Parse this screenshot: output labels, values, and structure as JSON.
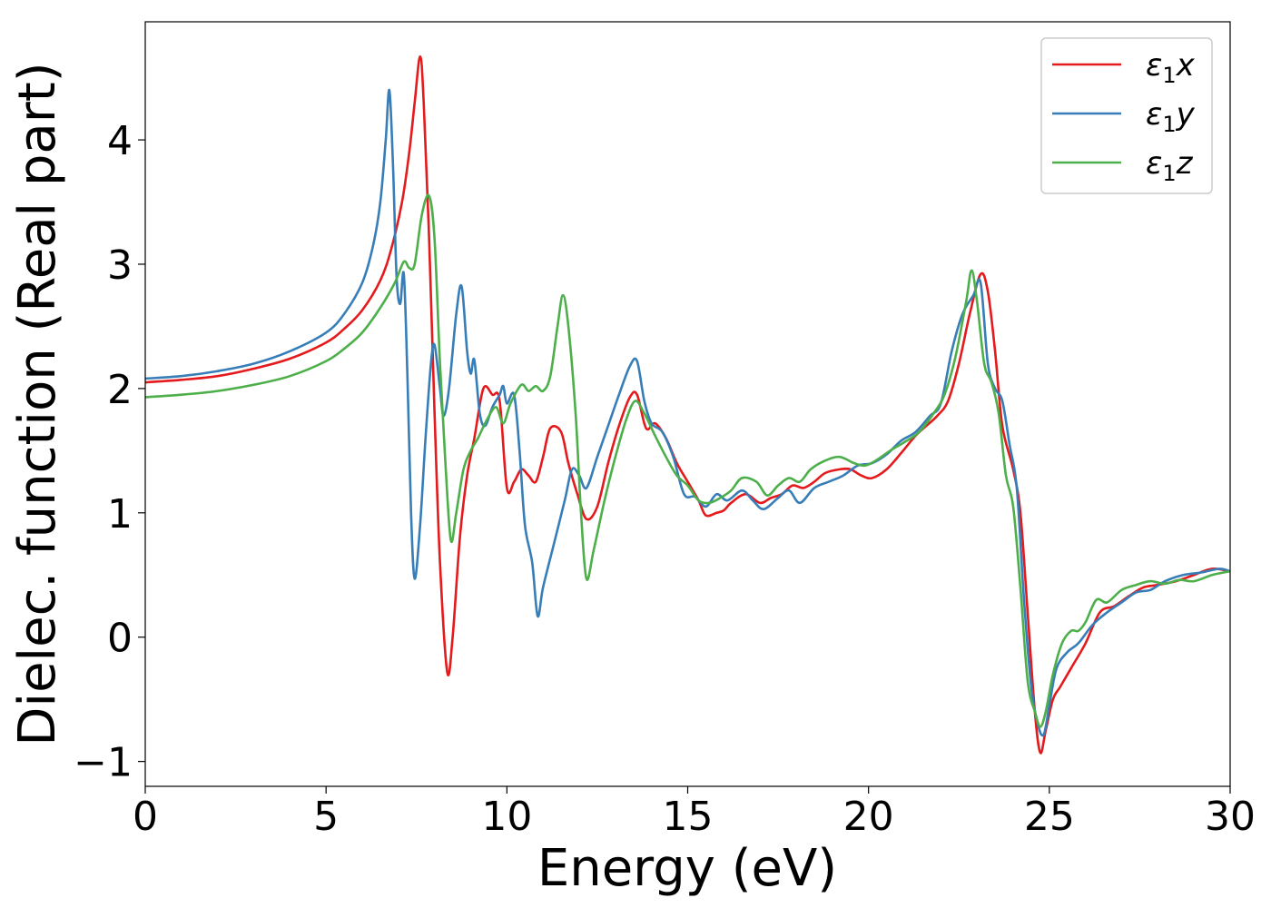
{
  "chart_data": {
    "type": "line",
    "xlabel": "Energy (eV)",
    "ylabel": "Dielec. function (Real part)",
    "xlim": [
      0,
      30
    ],
    "ylim": [
      -1.2,
      4.95
    ],
    "xticks": [
      "0",
      "5",
      "10",
      "15",
      "20",
      "25",
      "30"
    ],
    "yticks": [
      "−1",
      "0",
      "1",
      "2",
      "3",
      "4"
    ],
    "grid": false,
    "legend_position": "top-right",
    "series": [
      {
        "name": "ε1x",
        "legend": {
          "base": "ε",
          "sub": "1",
          "var": "x"
        },
        "color": "#e41a1c",
        "points": [
          [
            0,
            2.05
          ],
          [
            1,
            2.07
          ],
          [
            2,
            2.1
          ],
          [
            3,
            2.16
          ],
          [
            4,
            2.24
          ],
          [
            5,
            2.37
          ],
          [
            5.5,
            2.48
          ],
          [
            6,
            2.63
          ],
          [
            6.5,
            2.87
          ],
          [
            6.8,
            3.12
          ],
          [
            7.1,
            3.5
          ],
          [
            7.3,
            3.9
          ],
          [
            7.45,
            4.3
          ],
          [
            7.6,
            4.67
          ],
          [
            7.7,
            4.3
          ],
          [
            7.85,
            3.2
          ],
          [
            8.0,
            1.8
          ],
          [
            8.15,
            0.6
          ],
          [
            8.35,
            -0.28
          ],
          [
            8.5,
            0.0
          ],
          [
            8.7,
            0.8
          ],
          [
            8.9,
            1.3
          ],
          [
            9.1,
            1.6
          ],
          [
            9.35,
            2.0
          ],
          [
            9.6,
            1.95
          ],
          [
            9.8,
            1.9
          ],
          [
            10.0,
            1.2
          ],
          [
            10.2,
            1.25
          ],
          [
            10.4,
            1.35
          ],
          [
            10.6,
            1.3
          ],
          [
            10.8,
            1.25
          ],
          [
            11.0,
            1.45
          ],
          [
            11.2,
            1.68
          ],
          [
            11.5,
            1.65
          ],
          [
            11.7,
            1.4
          ],
          [
            11.95,
            1.15
          ],
          [
            12.2,
            0.95
          ],
          [
            12.5,
            1.05
          ],
          [
            12.8,
            1.4
          ],
          [
            13.1,
            1.7
          ],
          [
            13.4,
            1.93
          ],
          [
            13.6,
            1.95
          ],
          [
            13.85,
            1.68
          ],
          [
            14.1,
            1.72
          ],
          [
            14.4,
            1.6
          ],
          [
            14.7,
            1.4
          ],
          [
            15.0,
            1.25
          ],
          [
            15.3,
            1.1
          ],
          [
            15.5,
            0.98
          ],
          [
            15.8,
            1.0
          ],
          [
            16.0,
            1.02
          ],
          [
            16.2,
            1.08
          ],
          [
            16.6,
            1.15
          ],
          [
            17.0,
            1.08
          ],
          [
            17.3,
            1.12
          ],
          [
            17.6,
            1.15
          ],
          [
            17.9,
            1.22
          ],
          [
            18.2,
            1.2
          ],
          [
            18.5,
            1.25
          ],
          [
            18.8,
            1.32
          ],
          [
            19.2,
            1.35
          ],
          [
            19.5,
            1.35
          ],
          [
            19.8,
            1.3
          ],
          [
            20.1,
            1.28
          ],
          [
            20.5,
            1.35
          ],
          [
            20.9,
            1.48
          ],
          [
            21.3,
            1.62
          ],
          [
            21.6,
            1.7
          ],
          [
            21.9,
            1.78
          ],
          [
            22.2,
            1.9
          ],
          [
            22.5,
            2.2
          ],
          [
            22.8,
            2.6
          ],
          [
            23.1,
            2.92
          ],
          [
            23.3,
            2.78
          ],
          [
            23.5,
            2.3
          ],
          [
            23.7,
            1.7
          ],
          [
            24.0,
            1.35
          ],
          [
            24.2,
            1.0
          ],
          [
            24.4,
            0.2
          ],
          [
            24.6,
            -0.6
          ],
          [
            24.75,
            -0.93
          ],
          [
            24.9,
            -0.75
          ],
          [
            25.1,
            -0.5
          ],
          [
            25.3,
            -0.4
          ],
          [
            25.6,
            -0.25
          ],
          [
            26.0,
            -0.05
          ],
          [
            26.4,
            0.2
          ],
          [
            26.8,
            0.25
          ],
          [
            27.2,
            0.33
          ],
          [
            27.6,
            0.4
          ],
          [
            28.0,
            0.42
          ],
          [
            28.5,
            0.45
          ],
          [
            29.0,
            0.5
          ],
          [
            29.5,
            0.55
          ],
          [
            30.0,
            0.53
          ]
        ]
      },
      {
        "name": "ε1y",
        "legend": {
          "base": "ε",
          "sub": "1",
          "var": "y"
        },
        "color": "#377eb8",
        "points": [
          [
            0,
            2.08
          ],
          [
            1,
            2.1
          ],
          [
            2,
            2.14
          ],
          [
            3,
            2.2
          ],
          [
            4,
            2.3
          ],
          [
            5,
            2.45
          ],
          [
            5.5,
            2.6
          ],
          [
            6,
            2.85
          ],
          [
            6.3,
            3.15
          ],
          [
            6.5,
            3.5
          ],
          [
            6.65,
            4.0
          ],
          [
            6.75,
            4.4
          ],
          [
            6.85,
            3.8
          ],
          [
            6.95,
            2.9
          ],
          [
            7.05,
            2.68
          ],
          [
            7.15,
            2.92
          ],
          [
            7.25,
            2.1
          ],
          [
            7.35,
            1.0
          ],
          [
            7.45,
            0.47
          ],
          [
            7.6,
            0.9
          ],
          [
            7.75,
            1.6
          ],
          [
            7.9,
            2.2
          ],
          [
            8.0,
            2.35
          ],
          [
            8.15,
            2.0
          ],
          [
            8.25,
            1.78
          ],
          [
            8.4,
            2.0
          ],
          [
            8.6,
            2.6
          ],
          [
            8.75,
            2.82
          ],
          [
            8.9,
            2.3
          ],
          [
            9.0,
            2.12
          ],
          [
            9.1,
            2.23
          ],
          [
            9.25,
            1.8
          ],
          [
            9.4,
            1.7
          ],
          [
            9.6,
            1.85
          ],
          [
            9.8,
            1.95
          ],
          [
            9.9,
            2.02
          ],
          [
            10.0,
            1.88
          ],
          [
            10.2,
            1.95
          ],
          [
            10.35,
            1.5
          ],
          [
            10.5,
            0.9
          ],
          [
            10.7,
            0.6
          ],
          [
            10.85,
            0.17
          ],
          [
            11.0,
            0.4
          ],
          [
            11.3,
            0.75
          ],
          [
            11.6,
            1.1
          ],
          [
            11.8,
            1.35
          ],
          [
            12.0,
            1.3
          ],
          [
            12.2,
            1.2
          ],
          [
            12.5,
            1.45
          ],
          [
            12.8,
            1.7
          ],
          [
            13.1,
            1.95
          ],
          [
            13.4,
            2.18
          ],
          [
            13.6,
            2.22
          ],
          [
            13.8,
            1.9
          ],
          [
            14.0,
            1.72
          ],
          [
            14.3,
            1.65
          ],
          [
            14.6,
            1.45
          ],
          [
            14.9,
            1.15
          ],
          [
            15.2,
            1.13
          ],
          [
            15.5,
            1.05
          ],
          [
            15.8,
            1.15
          ],
          [
            16.1,
            1.1
          ],
          [
            16.5,
            1.18
          ],
          [
            16.8,
            1.1
          ],
          [
            17.1,
            1.03
          ],
          [
            17.5,
            1.12
          ],
          [
            17.8,
            1.18
          ],
          [
            18.1,
            1.08
          ],
          [
            18.5,
            1.2
          ],
          [
            18.9,
            1.25
          ],
          [
            19.3,
            1.3
          ],
          [
            19.7,
            1.38
          ],
          [
            20.1,
            1.4
          ],
          [
            20.5,
            1.47
          ],
          [
            20.9,
            1.58
          ],
          [
            21.3,
            1.65
          ],
          [
            21.7,
            1.78
          ],
          [
            22.0,
            1.88
          ],
          [
            22.3,
            2.3
          ],
          [
            22.6,
            2.6
          ],
          [
            22.9,
            2.75
          ],
          [
            23.1,
            2.85
          ],
          [
            23.3,
            2.2
          ],
          [
            23.5,
            2.0
          ],
          [
            23.7,
            1.9
          ],
          [
            23.9,
            1.55
          ],
          [
            24.1,
            1.2
          ],
          [
            24.3,
            0.3
          ],
          [
            24.5,
            -0.4
          ],
          [
            24.7,
            -0.72
          ],
          [
            24.85,
            -0.78
          ],
          [
            25.0,
            -0.55
          ],
          [
            25.2,
            -0.25
          ],
          [
            25.5,
            -0.12
          ],
          [
            25.8,
            -0.05
          ],
          [
            26.2,
            0.1
          ],
          [
            26.6,
            0.2
          ],
          [
            27.0,
            0.28
          ],
          [
            27.4,
            0.36
          ],
          [
            27.8,
            0.38
          ],
          [
            28.2,
            0.45
          ],
          [
            28.7,
            0.5
          ],
          [
            29.2,
            0.52
          ],
          [
            29.7,
            0.55
          ],
          [
            30.0,
            0.53
          ]
        ]
      },
      {
        "name": "ε1z",
        "legend": {
          "base": "ε",
          "sub": "1",
          "var": "z"
        },
        "color": "#4daf4a",
        "points": [
          [
            0,
            1.93
          ],
          [
            1,
            1.95
          ],
          [
            2,
            1.98
          ],
          [
            3,
            2.03
          ],
          [
            4,
            2.1
          ],
          [
            5,
            2.22
          ],
          [
            5.5,
            2.32
          ],
          [
            6,
            2.45
          ],
          [
            6.5,
            2.65
          ],
          [
            6.9,
            2.85
          ],
          [
            7.15,
            3.02
          ],
          [
            7.3,
            2.97
          ],
          [
            7.45,
            3.0
          ],
          [
            7.65,
            3.4
          ],
          [
            7.85,
            3.55
          ],
          [
            8.0,
            3.2
          ],
          [
            8.15,
            2.2
          ],
          [
            8.3,
            1.4
          ],
          [
            8.45,
            0.78
          ],
          [
            8.6,
            1.0
          ],
          [
            8.8,
            1.35
          ],
          [
            9.0,
            1.5
          ],
          [
            9.2,
            1.6
          ],
          [
            9.45,
            1.75
          ],
          [
            9.7,
            1.85
          ],
          [
            9.9,
            1.72
          ],
          [
            10.1,
            1.88
          ],
          [
            10.4,
            2.03
          ],
          [
            10.6,
            1.98
          ],
          [
            10.8,
            2.02
          ],
          [
            11.0,
            1.98
          ],
          [
            11.2,
            2.1
          ],
          [
            11.4,
            2.5
          ],
          [
            11.55,
            2.75
          ],
          [
            11.7,
            2.5
          ],
          [
            11.9,
            1.8
          ],
          [
            12.05,
            1.0
          ],
          [
            12.2,
            0.47
          ],
          [
            12.4,
            0.7
          ],
          [
            12.7,
            1.1
          ],
          [
            13.0,
            1.45
          ],
          [
            13.3,
            1.75
          ],
          [
            13.55,
            1.9
          ],
          [
            13.8,
            1.8
          ],
          [
            14.1,
            1.62
          ],
          [
            14.4,
            1.45
          ],
          [
            14.7,
            1.3
          ],
          [
            15.0,
            1.22
          ],
          [
            15.3,
            1.1
          ],
          [
            15.6,
            1.08
          ],
          [
            15.9,
            1.12
          ],
          [
            16.2,
            1.18
          ],
          [
            16.5,
            1.28
          ],
          [
            16.9,
            1.25
          ],
          [
            17.2,
            1.14
          ],
          [
            17.5,
            1.22
          ],
          [
            17.8,
            1.28
          ],
          [
            18.1,
            1.25
          ],
          [
            18.4,
            1.35
          ],
          [
            18.8,
            1.42
          ],
          [
            19.2,
            1.45
          ],
          [
            19.6,
            1.4
          ],
          [
            19.9,
            1.38
          ],
          [
            20.2,
            1.42
          ],
          [
            20.6,
            1.5
          ],
          [
            21.0,
            1.57
          ],
          [
            21.4,
            1.65
          ],
          [
            21.8,
            1.8
          ],
          [
            22.1,
            1.95
          ],
          [
            22.4,
            2.25
          ],
          [
            22.7,
            2.7
          ],
          [
            22.85,
            2.95
          ],
          [
            23.0,
            2.7
          ],
          [
            23.2,
            2.2
          ],
          [
            23.4,
            2.05
          ],
          [
            23.6,
            1.8
          ],
          [
            23.8,
            1.3
          ],
          [
            24.0,
            1.05
          ],
          [
            24.2,
            0.4
          ],
          [
            24.4,
            -0.35
          ],
          [
            24.6,
            -0.6
          ],
          [
            24.75,
            -0.72
          ],
          [
            24.9,
            -0.6
          ],
          [
            25.1,
            -0.3
          ],
          [
            25.35,
            -0.05
          ],
          [
            25.6,
            0.05
          ],
          [
            25.8,
            0.05
          ],
          [
            26.0,
            0.12
          ],
          [
            26.3,
            0.3
          ],
          [
            26.6,
            0.28
          ],
          [
            27.0,
            0.38
          ],
          [
            27.4,
            0.42
          ],
          [
            27.8,
            0.45
          ],
          [
            28.2,
            0.43
          ],
          [
            28.6,
            0.46
          ],
          [
            29.0,
            0.45
          ],
          [
            29.5,
            0.5
          ],
          [
            30.0,
            0.53
          ]
        ]
      }
    ]
  }
}
